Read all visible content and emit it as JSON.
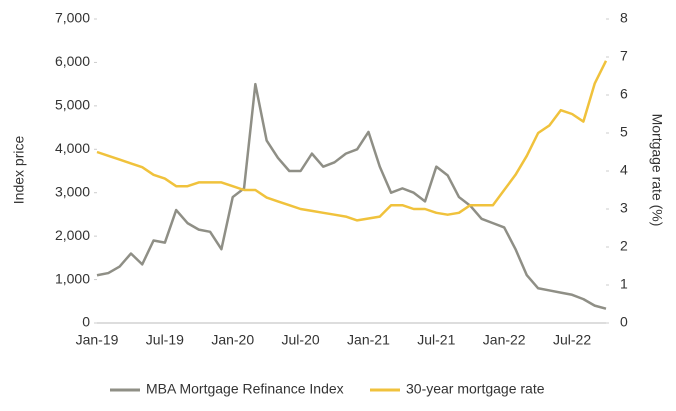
{
  "chart_data": {
    "type": "line",
    "categories": [
      "Jan-19",
      null,
      null,
      null,
      null,
      null,
      "Jul-19",
      null,
      null,
      null,
      null,
      null,
      "Jan-20",
      null,
      null,
      null,
      null,
      null,
      "Jul-20",
      null,
      null,
      null,
      null,
      null,
      "Jan-21",
      null,
      null,
      null,
      null,
      null,
      "Jul-21",
      null,
      null,
      null,
      null,
      null,
      "Jan-22",
      null,
      null,
      null,
      null,
      null,
      "Jul-22",
      null,
      null,
      null
    ],
    "series": [
      {
        "name": "MBA Mortgage Refinance Index",
        "color": "#8f8f86",
        "axis": "y",
        "values": [
          1100,
          1150,
          1300,
          1600,
          1350,
          1900,
          1850,
          2600,
          2300,
          2150,
          2100,
          1700,
          2900,
          3100,
          5500,
          4200,
          3800,
          3500,
          3500,
          3900,
          3600,
          3700,
          3900,
          4000,
          4400,
          3600,
          3000,
          3100,
          3000,
          2800,
          3600,
          3400,
          2900,
          2700,
          2400,
          2300,
          2200,
          1700,
          1100,
          800,
          750,
          700,
          650,
          550,
          400,
          330
        ]
      },
      {
        "name": "30-year mortgage rate",
        "color": "#f0c23c",
        "axis": "y2",
        "values": [
          4.5,
          4.4,
          4.3,
          4.2,
          4.1,
          3.9,
          3.8,
          3.6,
          3.6,
          3.7,
          3.7,
          3.7,
          3.6,
          3.5,
          3.5,
          3.3,
          3.2,
          3.1,
          3.0,
          2.95,
          2.9,
          2.85,
          2.8,
          2.7,
          2.75,
          2.8,
          3.1,
          3.1,
          3.0,
          3.0,
          2.9,
          2.85,
          2.9,
          3.1,
          3.1,
          3.1,
          3.5,
          3.9,
          4.4,
          5.0,
          5.2,
          5.6,
          5.5,
          5.3,
          6.3,
          6.9
        ]
      }
    ],
    "ylabel": "Index price",
    "y2label": "Mortgage rate (%)",
    "ylim": [
      0,
      7000
    ],
    "yticks": [
      0,
      {
        "value": 1000,
        "label": "1,000"
      },
      {
        "value": 2000,
        "label": "2,000"
      },
      {
        "value": 3000,
        "label": "3,000"
      },
      {
        "value": 4000,
        "label": "4,000"
      },
      {
        "value": 5000,
        "label": "5,000"
      },
      {
        "value": 6000,
        "label": "6,000"
      },
      {
        "value": 7000,
        "label": "7,000"
      }
    ],
    "y2lim": [
      0,
      8
    ],
    "y2ticks": [
      0,
      1,
      2,
      3,
      4,
      5,
      6,
      7,
      8
    ],
    "grid": false,
    "legend": "bottom"
  }
}
